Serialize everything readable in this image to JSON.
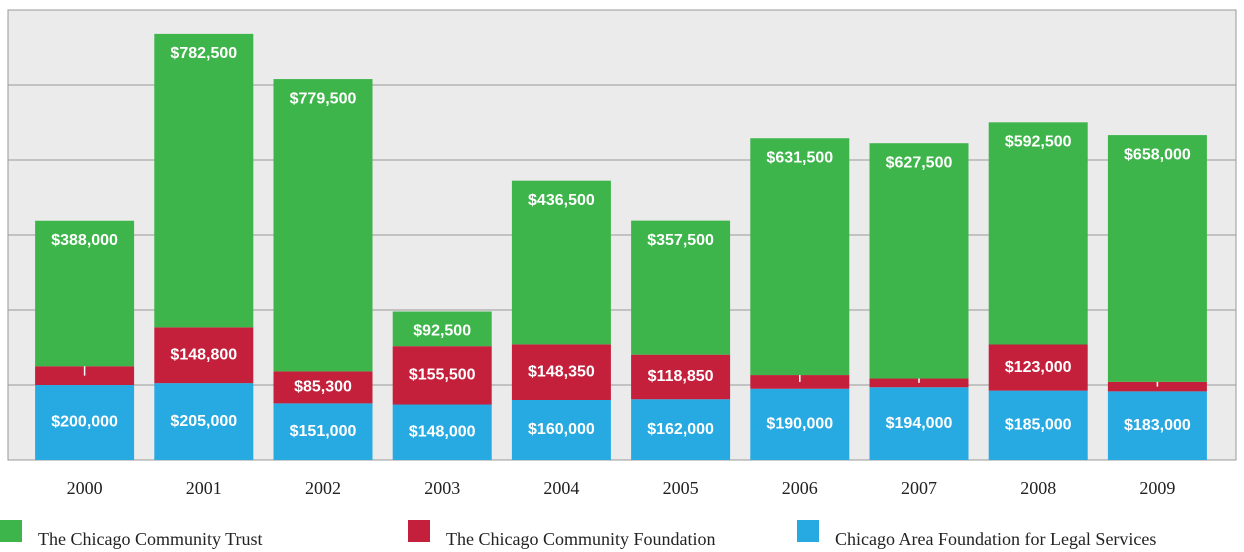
{
  "chart_data": {
    "type": "stacked-bar",
    "categories": [
      "2000",
      "2001",
      "2002",
      "2003",
      "2004",
      "2005",
      "2006",
      "2007",
      "2008",
      "2009"
    ],
    "series": [
      {
        "name": "The Chicago Community Trust",
        "color": "#3db54a",
        "values": [
          388000,
          782500,
          779500,
          92500,
          436500,
          357500,
          631500,
          627500,
          592500,
          658000
        ],
        "value_labels": [
          "$388,000",
          "$782,500",
          "$779,500",
          "$92,500",
          "$436,500",
          "$357,500",
          "$631,500",
          "$627,500",
          "$592,500",
          "$658,000"
        ]
      },
      {
        "name": "The Chicago Community Foundation",
        "color": "#c41f3b",
        "values": [
          50000,
          148800,
          85300,
          155500,
          148350,
          118850,
          36500,
          23250,
          123000,
          25409
        ],
        "value_labels": [
          "$50,000",
          "$148,800",
          "$85,300",
          "$155,500",
          "$148,350",
          "$118,850",
          "$36,500",
          "$23,250",
          "$123,000",
          "$25,409"
        ]
      },
      {
        "name": "Chicago Area Foundation for Legal Services",
        "color": "#27a9e1",
        "values": [
          200000,
          205000,
          151000,
          148000,
          160000,
          162000,
          190000,
          194000,
          185000,
          183000
        ],
        "value_labels": [
          "$200,000",
          "$205,000",
          "$151,000",
          "$148,000",
          "$160,000",
          "$162,000",
          "$190,000",
          "$194,000",
          "$185,000",
          "$183,000"
        ]
      }
    ],
    "ylim": [
      0,
      1200000
    ],
    "yticks": [
      0,
      200000,
      400000,
      600000,
      800000,
      1000000,
      1200000
    ],
    "grid": true
  }
}
